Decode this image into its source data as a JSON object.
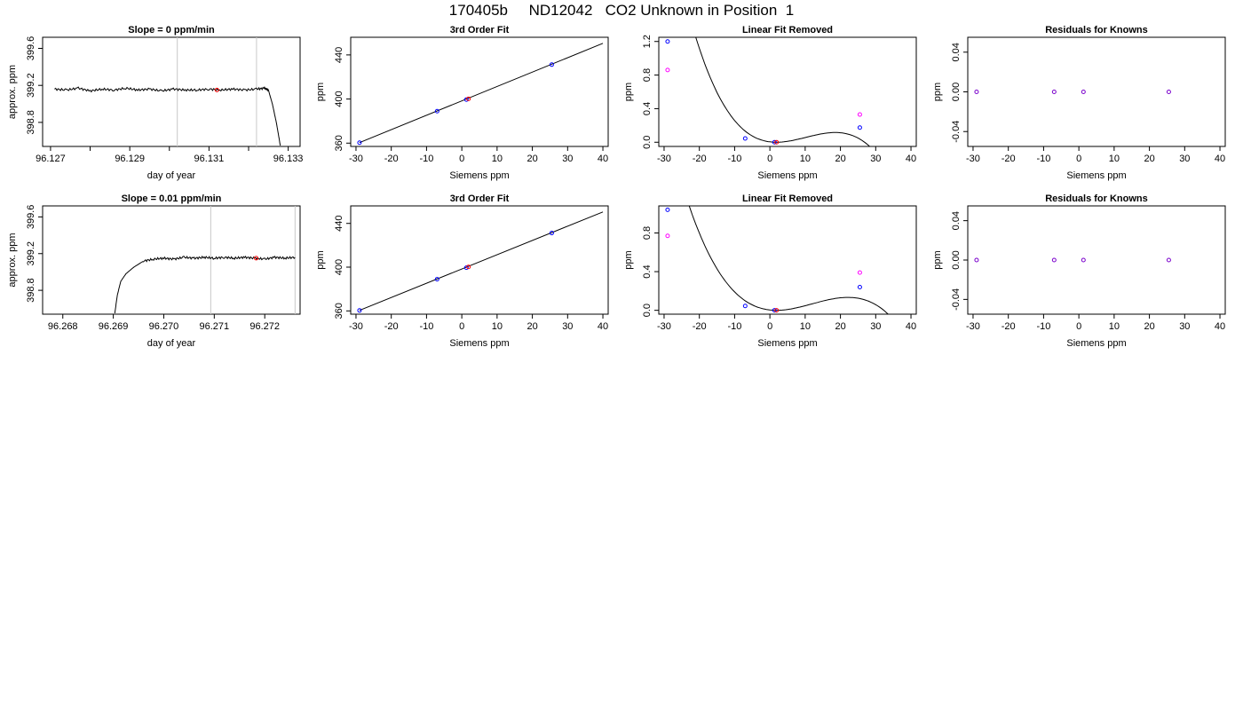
{
  "page": {
    "title": "170405b     ND12042   CO2 Unknown in Position  1"
  },
  "colors": {
    "trace": "#000000",
    "ref_lines": "#c8c8c8",
    "known_points": "#0000ff",
    "unknown_points": "#ff0000",
    "raw_points": "#ff00ff",
    "residual_points": "#7a00cc"
  },
  "chart_data": [
    {
      "id": "r1c1",
      "type": "line",
      "title": "Slope =  0  ppm/min",
      "xlabel": "day of year",
      "ylabel": "approx. ppm",
      "xlim": [
        96.1268,
        96.1333
      ],
      "ylim": [
        398.54,
        399.72
      ],
      "xticks": [
        96.127,
        96.128,
        96.129,
        96.13,
        96.131,
        96.132,
        96.133
      ],
      "xtick_labels": [
        "96.127",
        "",
        "96.129",
        "",
        "96.131",
        "",
        "96.133"
      ],
      "yticks": [
        398.8,
        399.2,
        399.6
      ],
      "ytick_labels": [
        "398.8",
        "399.2",
        "399.6"
      ],
      "series": [
        {
          "x": [
            96.1271,
            96.1274,
            96.1277,
            96.128,
            96.1283,
            96.1286,
            96.1289,
            96.1292,
            96.1295,
            96.1298,
            96.1301,
            96.1304,
            96.1307,
            96.131,
            96.1313,
            96.1316,
            96.1319,
            96.1322,
            96.1324,
            96.1325,
            96.1326,
            96.1327,
            96.1328
          ],
          "y": [
            399.16,
            399.15,
            399.17,
            399.14,
            399.16,
            399.15,
            399.17,
            399.15,
            399.16,
            399.14,
            399.16,
            399.15,
            399.15,
            399.16,
            399.15,
            399.16,
            399.15,
            399.16,
            399.17,
            399.15,
            399.0,
            398.8,
            398.55
          ]
        }
      ],
      "vlines": [
        96.1302,
        96.1322
      ],
      "markers": [
        {
          "x": 96.1312,
          "y": 399.15
        }
      ]
    },
    {
      "id": "r1c2",
      "type": "scatter",
      "title": "3rd Order Fit",
      "xlabel": "Siemens ppm",
      "ylabel": "ppm",
      "xlim": [
        -31.5,
        41.5
      ],
      "ylim": [
        357,
        456
      ],
      "xticks": [
        -30,
        -20,
        -10,
        0,
        10,
        20,
        30,
        40
      ],
      "yticks": [
        360,
        400,
        440
      ],
      "fit_line": {
        "x": [
          -29,
          40
        ],
        "y": [
          360.5,
          450.5
        ]
      },
      "known_points": {
        "x": [
          -29,
          -7,
          1.3,
          25.5
        ],
        "y": [
          360.4,
          389.0,
          399.5,
          431.2
        ]
      },
      "unknown_points": {
        "x": [
          1.9
        ],
        "y": [
          400.2
        ]
      }
    },
    {
      "id": "r1c3",
      "type": "scatter",
      "title": "Linear Fit Removed",
      "xlabel": "Siemens ppm",
      "ylabel": "ppm",
      "xlim": [
        -31.5,
        41.5
      ],
      "ylim": [
        -0.05,
        1.25
      ],
      "xticks": [
        -30,
        -20,
        -10,
        0,
        10,
        20,
        30,
        40
      ],
      "yticks": [
        0.0,
        0.4,
        0.8,
        1.2
      ],
      "ytick_labels": [
        "0.0",
        "0.4",
        "0.8",
        "1.2"
      ],
      "fit_curve": {
        "x0": 1.85,
        "d": -5e-05,
        "e": 0.00125,
        "v0": 0.0,
        "x_range": [
          -29,
          40
        ]
      },
      "known_points": {
        "x": [
          -29,
          -7,
          1.3,
          25.5
        ],
        "y": [
          1.2,
          0.045,
          0.0,
          0.175
        ]
      },
      "unknown_points": {
        "x": [
          1.9
        ],
        "y": [
          0.0
        ]
      },
      "raw_points": {
        "x": [
          -29,
          25.5
        ],
        "y": [
          0.86,
          0.33
        ]
      }
    },
    {
      "id": "r1c4",
      "type": "scatter",
      "title": "Residuals for Knowns",
      "xlabel": "Siemens ppm",
      "ylabel": "ppm",
      "xlim": [
        -31.5,
        41.5
      ],
      "ylim": [
        -0.055,
        0.055
      ],
      "xticks": [
        -30,
        -20,
        -10,
        0,
        10,
        20,
        30,
        40
      ],
      "yticks": [
        -0.04,
        0.0,
        0.04
      ],
      "ytick_labels": [
        "-0.04",
        "0.00",
        "0.04"
      ],
      "residual_points": {
        "x": [
          -29,
          -7,
          1.3,
          25.5
        ],
        "y": [
          0,
          0,
          0,
          0
        ]
      }
    },
    {
      "id": "r2c1",
      "type": "line",
      "title": "Slope =  0.01  ppm/min",
      "xlabel": "day of year",
      "ylabel": "approx. ppm",
      "xlim": [
        96.2676,
        96.2727
      ],
      "ylim": [
        398.54,
        399.72
      ],
      "xticks": [
        96.268,
        96.269,
        96.27,
        96.271,
        96.272
      ],
      "xtick_labels": [
        "96.268",
        "96.269",
        "96.270",
        "96.271",
        "96.272"
      ],
      "yticks": [
        398.8,
        399.2,
        399.6
      ],
      "ytick_labels": [
        "398.8",
        "399.2",
        "399.6"
      ],
      "series": [
        {
          "x": [
            96.26903,
            96.26908,
            96.26915,
            96.26925,
            96.2694,
            96.2696,
            96.2698,
            96.27,
            96.2702,
            96.2704,
            96.2706,
            96.2708,
            96.271,
            96.2712,
            96.2714,
            96.2716,
            96.2718,
            96.272,
            96.2722,
            96.2724,
            96.2726
          ],
          "y": [
            398.55,
            398.75,
            398.9,
            398.98,
            399.05,
            399.12,
            399.14,
            399.15,
            399.14,
            399.16,
            399.15,
            399.16,
            399.15,
            399.16,
            399.15,
            399.16,
            399.15,
            399.14,
            399.16,
            399.15,
            399.16
          ]
        }
      ],
      "vlines": [
        96.27093,
        96.2726
      ],
      "markers": [
        {
          "x": 96.27183,
          "y": 399.15
        }
      ]
    },
    {
      "id": "r2c2",
      "type": "scatter",
      "title": "3rd Order Fit",
      "xlabel": "Siemens ppm",
      "ylabel": "ppm",
      "xlim": [
        -31.5,
        41.5
      ],
      "ylim": [
        357,
        456
      ],
      "xticks": [
        -30,
        -20,
        -10,
        0,
        10,
        20,
        30,
        40
      ],
      "yticks": [
        360,
        400,
        440
      ],
      "fit_line": {
        "x": [
          -29,
          40
        ],
        "y": [
          360.5,
          450.5
        ]
      },
      "known_points": {
        "x": [
          -29,
          -7,
          1.3,
          25.5
        ],
        "y": [
          360.4,
          389.0,
          399.5,
          431.2
        ]
      },
      "unknown_points": {
        "x": [
          1.9
        ],
        "y": [
          400.2
        ]
      }
    },
    {
      "id": "r2c3",
      "type": "scatter",
      "title": "Linear Fit Removed",
      "xlabel": "Siemens ppm",
      "ylabel": "ppm",
      "xlim": [
        -31.5,
        41.5
      ],
      "ylim": [
        -0.04,
        1.08
      ],
      "xticks": [
        -30,
        -20,
        -10,
        0,
        10,
        20,
        30,
        40
      ],
      "yticks": [
        0.0,
        0.4,
        0.8
      ],
      "ytick_labels": [
        "0.0",
        "0.4",
        "0.8"
      ],
      "fit_curve": {
        "x0": 1.85,
        "d": -3.2e-05,
        "e": 0.000974,
        "v0": 0.0,
        "x_range": [
          -29,
          40
        ]
      },
      "known_points": {
        "x": [
          -29,
          -7,
          1.3,
          25.5
        ],
        "y": [
          1.04,
          0.045,
          0.0,
          0.24
        ]
      },
      "unknown_points": {
        "x": [
          1.9
        ],
        "y": [
          0.0
        ]
      },
      "raw_points": {
        "x": [
          -29,
          25.5
        ],
        "y": [
          0.77,
          0.39
        ]
      }
    },
    {
      "id": "r2c4",
      "type": "scatter",
      "title": "Residuals for Knowns",
      "xlabel": "Siemens ppm",
      "ylabel": "ppm",
      "xlim": [
        -31.5,
        41.5
      ],
      "ylim": [
        -0.055,
        0.055
      ],
      "xticks": [
        -30,
        -20,
        -10,
        0,
        10,
        20,
        30,
        40
      ],
      "yticks": [
        -0.04,
        0.0,
        0.04
      ],
      "ytick_labels": [
        "-0.04",
        "0.00",
        "0.04"
      ],
      "residual_points": {
        "x": [
          -29,
          -7,
          1.3,
          25.5
        ],
        "y": [
          0,
          0,
          0,
          0
        ]
      }
    }
  ]
}
